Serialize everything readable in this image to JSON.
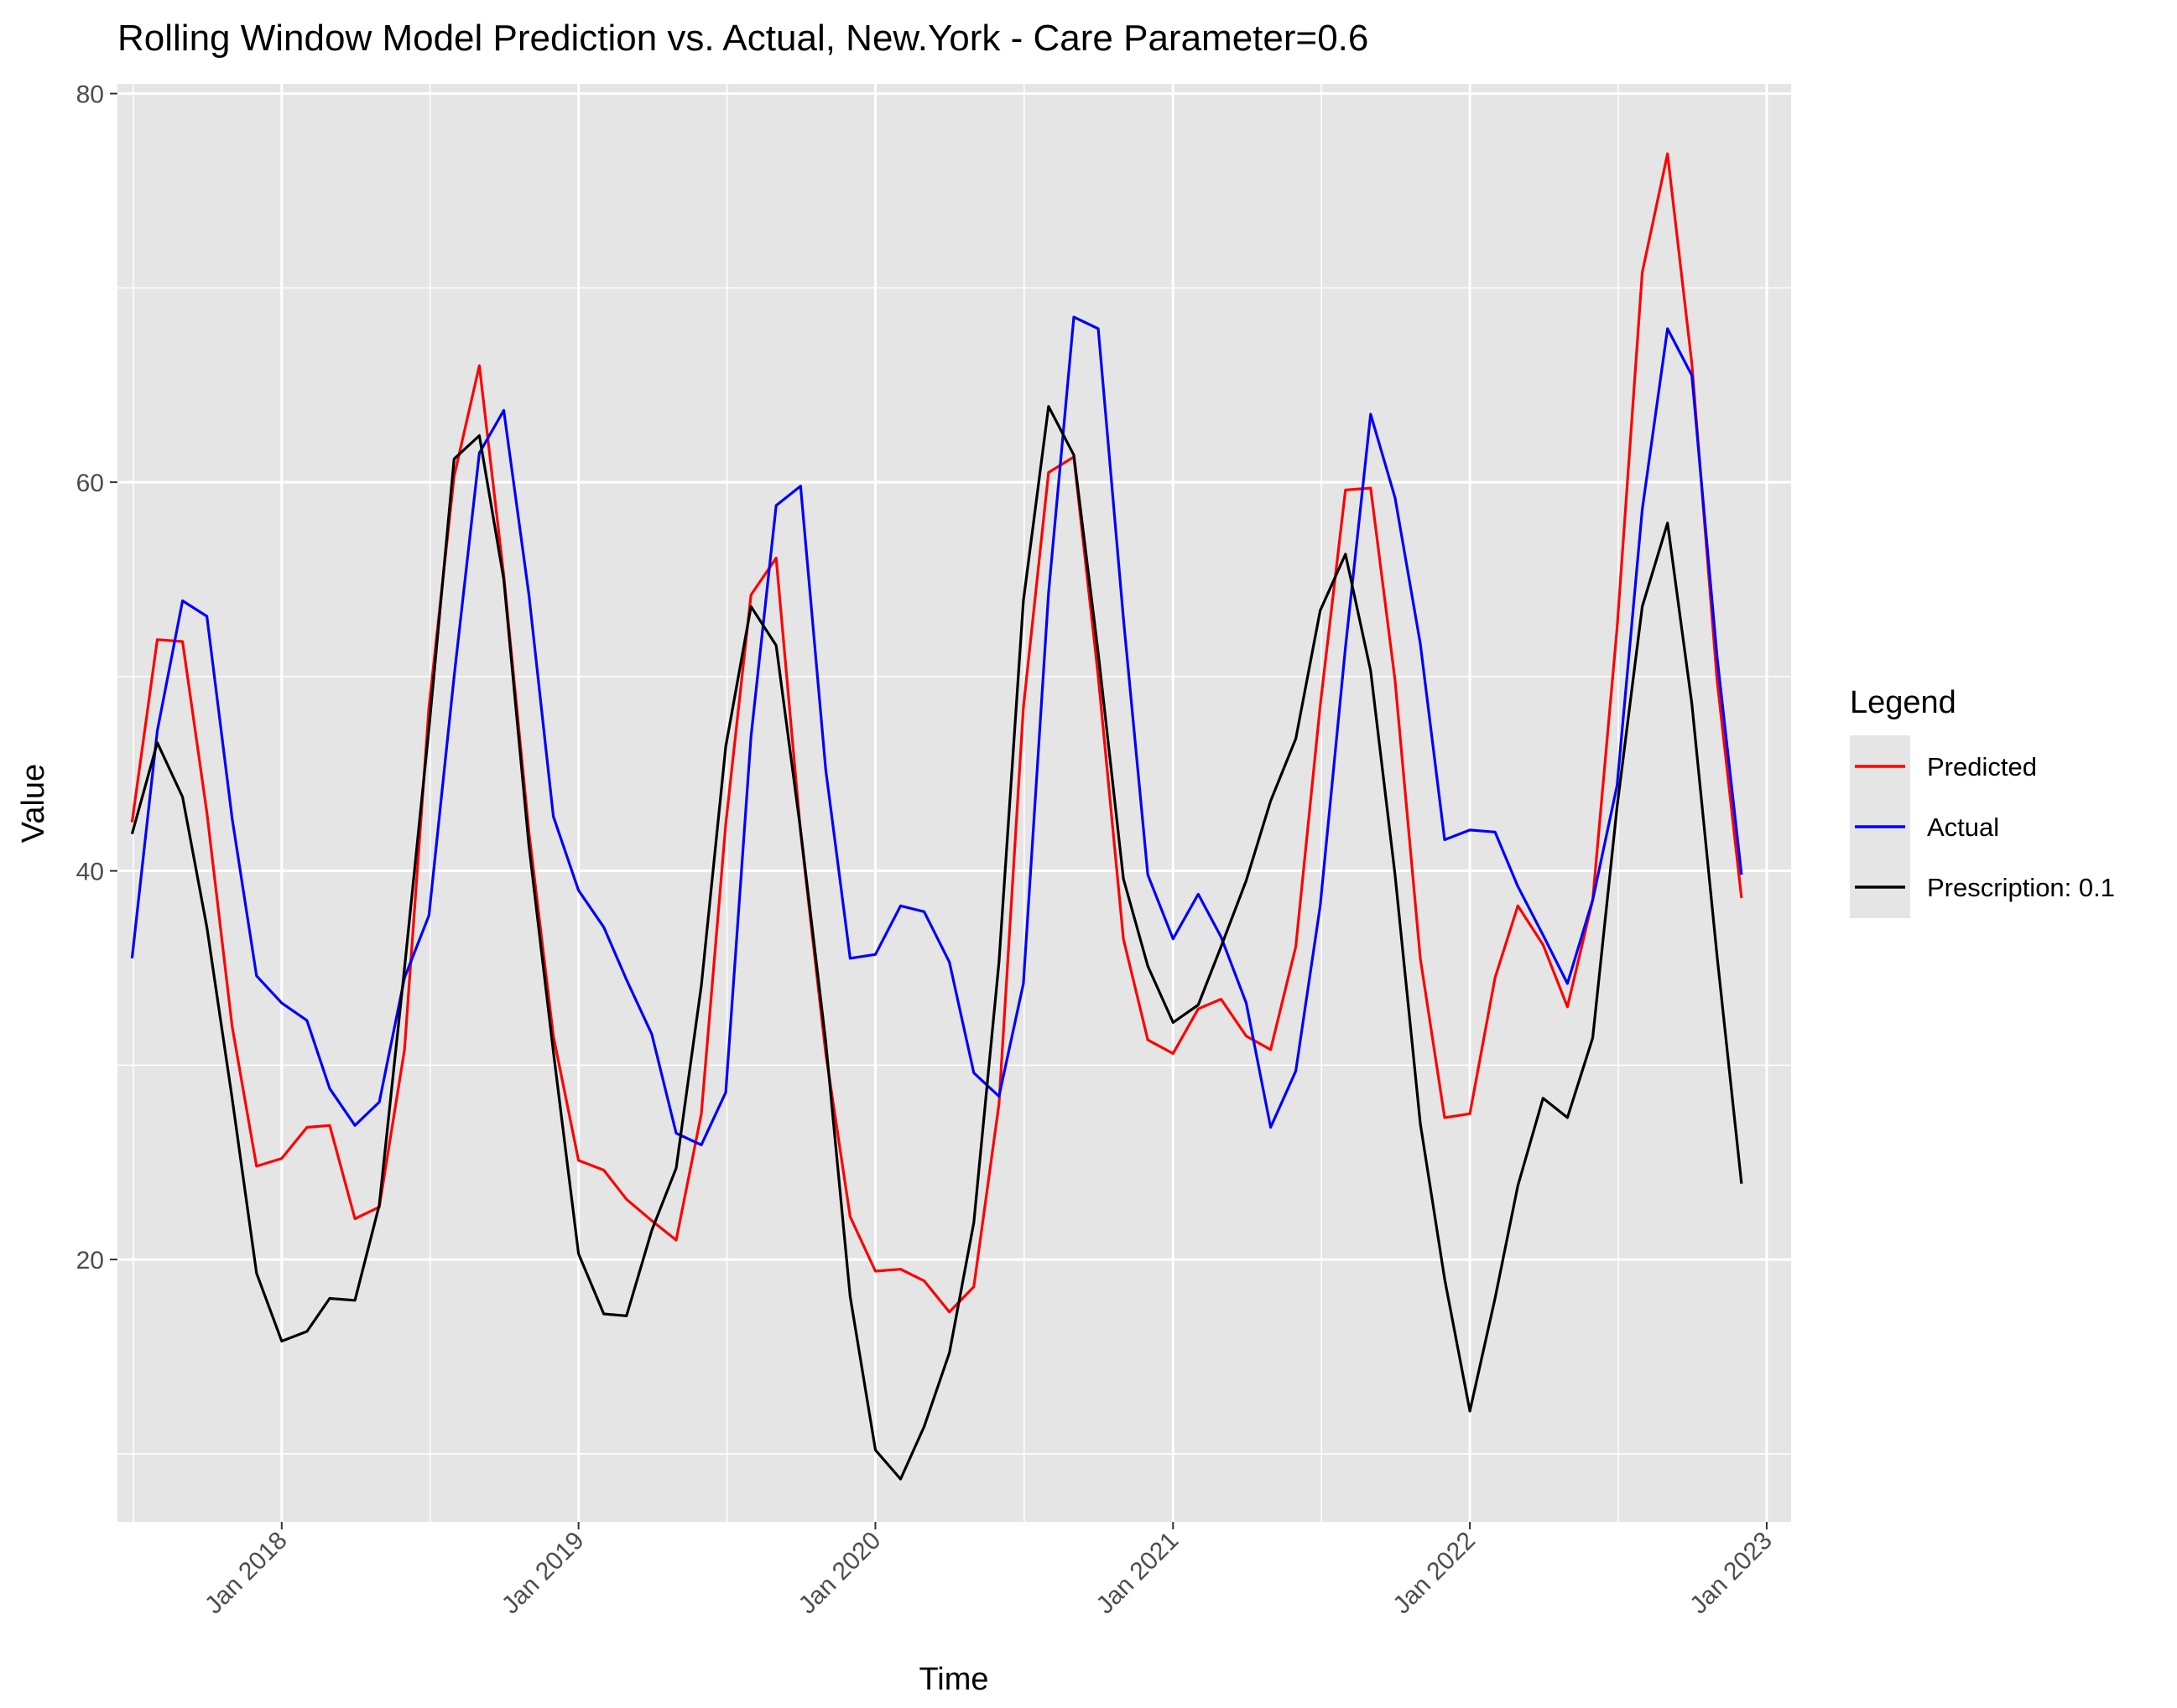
{
  "chart_data": {
    "type": "line",
    "title": "Rolling Window Model Prediction vs. Actual, New.York - Care Parameter=0.6",
    "xlabel": "Time",
    "ylabel": "Value",
    "xlim": [
      "2017-06-13",
      "2023-01-31"
    ],
    "ylim": [
      6.5,
      80.5
    ],
    "y_ticks": [
      20,
      40,
      60,
      80
    ],
    "x_ticks": [
      {
        "date": "2018-01-01",
        "label": "Jan 2018"
      },
      {
        "date": "2019-01-01",
        "label": "Jan 2019"
      },
      {
        "date": "2020-01-01",
        "label": "Jan 2020"
      },
      {
        "date": "2021-01-01",
        "label": "Jan 2021"
      },
      {
        "date": "2022-01-01",
        "label": "Jan 2022"
      },
      {
        "date": "2023-01-01",
        "label": "Jan 2023"
      }
    ],
    "grid": true,
    "legend": {
      "title": "Legend",
      "position": "right"
    },
    "x": [
      "2017-07-01",
      "2017-08-01",
      "2017-09-01",
      "2017-10-01",
      "2017-11-01",
      "2017-12-01",
      "2018-01-01",
      "2018-02-01",
      "2018-03-01",
      "2018-04-01",
      "2018-05-01",
      "2018-06-01",
      "2018-07-01",
      "2018-08-01",
      "2018-09-01",
      "2018-10-01",
      "2018-11-01",
      "2018-12-01",
      "2019-01-01",
      "2019-02-01",
      "2019-03-01",
      "2019-04-01",
      "2019-05-01",
      "2019-06-01",
      "2019-07-01",
      "2019-08-01",
      "2019-09-01",
      "2019-10-01",
      "2019-11-01",
      "2019-12-01",
      "2020-01-01",
      "2020-02-01",
      "2020-03-01",
      "2020-04-01",
      "2020-05-01",
      "2020-06-01",
      "2020-07-01",
      "2020-08-01",
      "2020-09-01",
      "2020-10-01",
      "2020-11-01",
      "2020-12-01",
      "2021-01-01",
      "2021-02-01",
      "2021-03-01",
      "2021-04-01",
      "2021-05-01",
      "2021-06-01",
      "2021-07-01",
      "2021-08-01",
      "2021-09-01",
      "2021-10-01",
      "2021-11-01",
      "2021-12-01",
      "2022-01-01",
      "2022-02-01",
      "2022-03-01",
      "2022-04-01",
      "2022-05-01",
      "2022-06-01",
      "2022-07-01",
      "2022-08-01",
      "2022-09-01",
      "2022-10-01",
      "2022-11-01",
      "2022-12-01"
    ],
    "series": [
      {
        "name": "Predicted",
        "color": "#ff0000",
        "values": [
          42.5,
          51.9,
          51.8,
          43.0,
          32.0,
          24.8,
          25.2,
          26.8,
          26.9,
          22.1,
          22.7,
          30.8,
          48.4,
          60.3,
          66.0,
          55.2,
          42.0,
          31.5,
          25.1,
          24.6,
          23.1,
          22.0,
          21.0,
          27.5,
          42.4,
          54.2,
          56.1,
          42.0,
          30.6,
          22.2,
          19.4,
          19.5,
          18.9,
          17.3,
          18.6,
          28.0,
          48.4,
          60.5,
          61.3,
          50.0,
          36.5,
          31.3,
          30.6,
          32.9,
          33.4,
          31.5,
          30.8,
          36.1,
          48.5,
          59.6,
          59.7,
          49.8,
          35.5,
          27.3,
          27.5,
          34.5,
          38.2,
          36.2,
          33.0,
          38.5,
          52.5,
          70.8,
          76.9,
          66.1,
          49.8,
          38.6
        ]
      },
      {
        "name": "Actual",
        "color": "#0000ff",
        "values": [
          35.5,
          47.2,
          53.9,
          53.1,
          42.7,
          34.6,
          33.2,
          32.3,
          28.8,
          26.9,
          28.1,
          34.5,
          37.7,
          50.0,
          61.5,
          63.7,
          54.2,
          42.8,
          39.0,
          37.1,
          34.4,
          31.6,
          26.5,
          25.9,
          28.6,
          46.9,
          58.8,
          59.8,
          45.2,
          35.5,
          35.7,
          38.2,
          37.9,
          35.3,
          29.6,
          28.4,
          34.2,
          54.3,
          68.5,
          67.9,
          53.0,
          39.8,
          36.5,
          38.8,
          36.6,
          33.2,
          26.8,
          29.7,
          38.2,
          51.5,
          63.5,
          59.2,
          51.7,
          41.6,
          42.1,
          42.0,
          39.2,
          36.7,
          34.2,
          38.5,
          44.4,
          58.6,
          67.9,
          65.5,
          51.0,
          39.8
        ]
      },
      {
        "name": "Prescription: 0.1",
        "color": "#000000",
        "values": [
          41.9,
          46.6,
          43.8,
          37.1,
          28.3,
          19.3,
          15.8,
          16.3,
          18.0,
          17.9,
          22.8,
          35.0,
          47.3,
          61.2,
          62.4,
          55.0,
          41.3,
          30.7,
          20.3,
          17.2,
          17.1,
          21.5,
          24.7,
          34.1,
          46.4,
          53.6,
          51.6,
          42.1,
          31.2,
          18.1,
          10.2,
          8.7,
          11.4,
          15.2,
          21.9,
          35.3,
          53.9,
          63.9,
          61.4,
          51.2,
          39.6,
          35.1,
          32.2,
          33.1,
          36.1,
          39.5,
          43.6,
          46.8,
          53.4,
          56.3,
          50.3,
          39.8,
          27.0,
          19.0,
          12.2,
          18.0,
          23.8,
          28.3,
          27.3,
          31.4,
          43.3,
          53.6,
          57.9,
          48.6,
          35.6,
          23.9
        ]
      }
    ]
  }
}
